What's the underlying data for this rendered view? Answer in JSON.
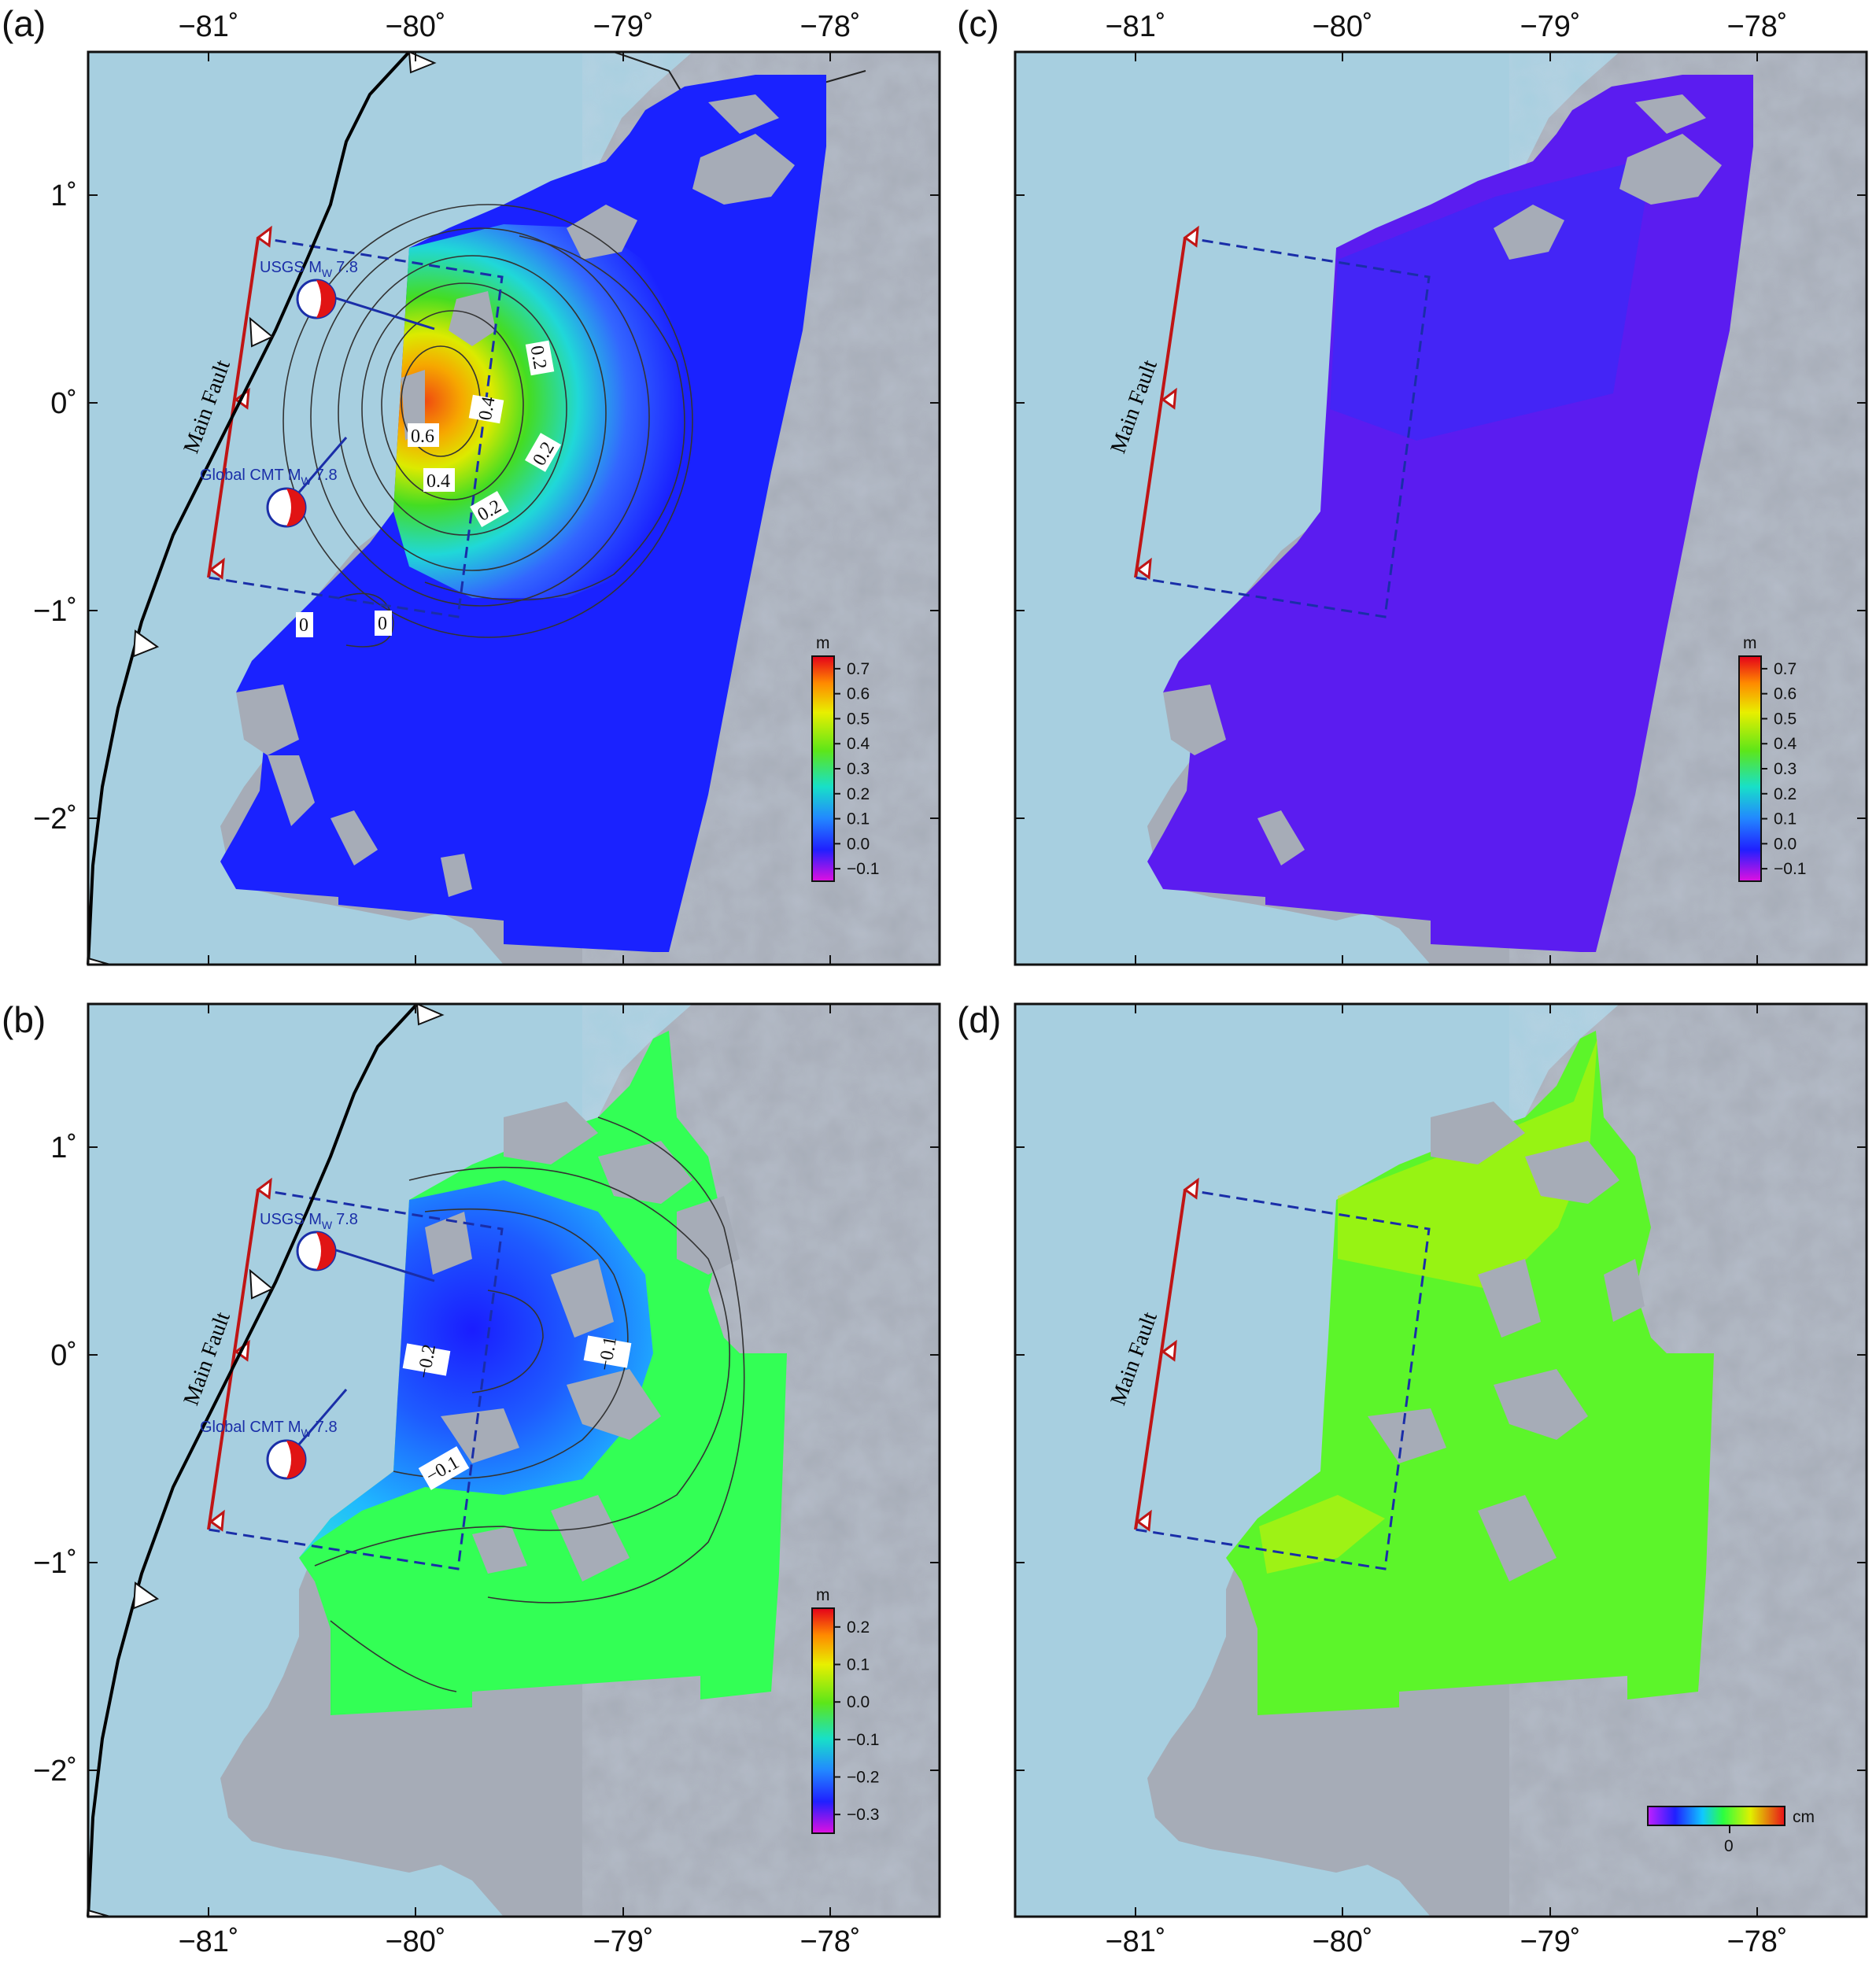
{
  "colors": {
    "ocean": "#a7cfe0",
    "land": "#a7adb8",
    "fault_trace": "#c01515",
    "fault_outline": "#1a2ea8",
    "trench": "#000000",
    "mechanism_compression": "#e11414"
  },
  "axes": {
    "lon_labels": [
      "−81˚",
      "−80˚",
      "−79˚",
      "−78˚"
    ],
    "lat_labels": [
      "1˚",
      "0˚",
      "−1˚",
      "−2˚"
    ]
  },
  "panels": [
    {
      "id": "a",
      "label": "(a)",
      "fault_label": "Main Fault",
      "usgs_label": "USGS M",
      "usgs_mag": "7.8",
      "gcmt_label": "Global CMT M",
      "gcmt_mag": "7.8",
      "contour_labels": [
        "0.6",
        "0.4",
        "0.4",
        "0.2",
        "0.2",
        "0.2",
        "0",
        "0"
      ],
      "colorbar": {
        "unit": "m",
        "ticks": [
          "0.7",
          "0.6",
          "0.5",
          "0.4",
          "0.3",
          "0.2",
          "0.1",
          "0.0",
          "−0.1"
        ]
      }
    },
    {
      "id": "b",
      "label": "(b)",
      "fault_label": "Main Fault",
      "usgs_label": "USGS M",
      "usgs_mag": "7.8",
      "gcmt_label": "Global CMT M",
      "gcmt_mag": "7.8",
      "contour_labels": [
        "−0.2",
        "−0.1",
        "−0.1"
      ],
      "colorbar": {
        "unit": "m",
        "ticks": [
          "0.2",
          "0.1",
          "0.0",
          "−0.1",
          "−0.2",
          "−0.3"
        ]
      }
    },
    {
      "id": "c",
      "label": "(c)",
      "fault_label": "Main Fault",
      "colorbar": {
        "unit": "m",
        "ticks": [
          "0.7",
          "0.6",
          "0.5",
          "0.4",
          "0.3",
          "0.2",
          "0.1",
          "0.0",
          "−0.1"
        ]
      }
    },
    {
      "id": "d",
      "label": "(d)",
      "fault_label": "Main Fault",
      "colorbar": {
        "unit": "cm",
        "ticks": [
          "0"
        ]
      }
    }
  ]
}
